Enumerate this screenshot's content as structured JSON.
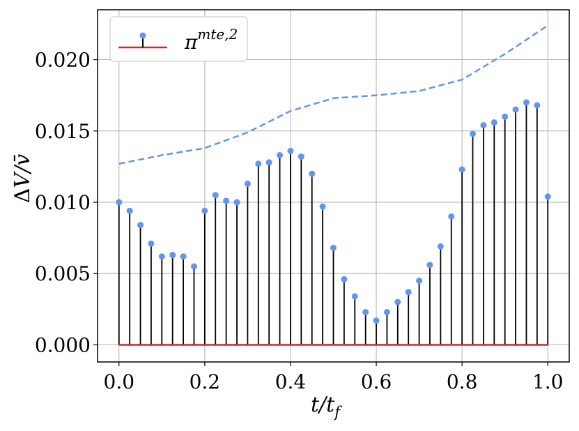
{
  "chart_data": {
    "type": "stem",
    "xlabel": "t/t_f",
    "ylabel": "ΔV/v̄",
    "xlim": [
      -0.05,
      1.05
    ],
    "ylim": [
      -0.0012,
      0.0235
    ],
    "grid": true,
    "legend": {
      "placement": "top-left",
      "entries": [
        "π^{mte,2}"
      ]
    },
    "x_ticks": [
      0.0,
      0.2,
      0.4,
      0.6,
      0.8,
      1.0
    ],
    "x_tick_labels": [
      "0.0",
      "0.2",
      "0.4",
      "0.6",
      "0.8",
      "1.0"
    ],
    "y_ticks": [
      0.0,
      0.005,
      0.01,
      0.015,
      0.02
    ],
    "y_tick_labels": [
      "0.000",
      "0.005",
      "0.010",
      "0.015",
      "0.020"
    ],
    "series": [
      {
        "name": "π^{mte,2}",
        "kind": "stem",
        "marker_color": "#6495ed",
        "stem_color": "#000000",
        "baseline_color": "#d62728",
        "baseline": 0.0,
        "x": [
          0.0,
          0.025,
          0.05,
          0.075,
          0.1,
          0.125,
          0.15,
          0.175,
          0.2,
          0.225,
          0.25,
          0.275,
          0.3,
          0.325,
          0.35,
          0.375,
          0.4,
          0.425,
          0.45,
          0.475,
          0.5,
          0.525,
          0.55,
          0.575,
          0.6,
          0.625,
          0.65,
          0.675,
          0.7,
          0.725,
          0.75,
          0.775,
          0.8,
          0.825,
          0.85,
          0.875,
          0.9,
          0.925,
          0.95,
          0.975,
          1.0
        ],
        "y": [
          0.01,
          0.0094,
          0.0084,
          0.0071,
          0.0062,
          0.0063,
          0.0062,
          0.0055,
          0.0094,
          0.0105,
          0.0101,
          0.01,
          0.0113,
          0.0127,
          0.0128,
          0.0133,
          0.0136,
          0.0132,
          0.012,
          0.0097,
          0.0068,
          0.0046,
          0.0034,
          0.0023,
          0.0017,
          0.0023,
          0.003,
          0.0037,
          0.0045,
          0.0056,
          0.0069,
          0.009,
          0.0123,
          0.0148,
          0.0154,
          0.0156,
          0.016,
          0.0165,
          0.017,
          0.0168,
          0.0104
        ]
      },
      {
        "kind": "line",
        "style": "dashed",
        "color": "#6495ed",
        "x": [
          0.0,
          0.1,
          0.2,
          0.3,
          0.4,
          0.5,
          0.6,
          0.7,
          0.8,
          0.9,
          1.0
        ],
        "y": [
          0.0127,
          0.0133,
          0.0138,
          0.0149,
          0.0164,
          0.0173,
          0.0175,
          0.0178,
          0.0186,
          0.0204,
          0.0224
        ]
      }
    ]
  }
}
